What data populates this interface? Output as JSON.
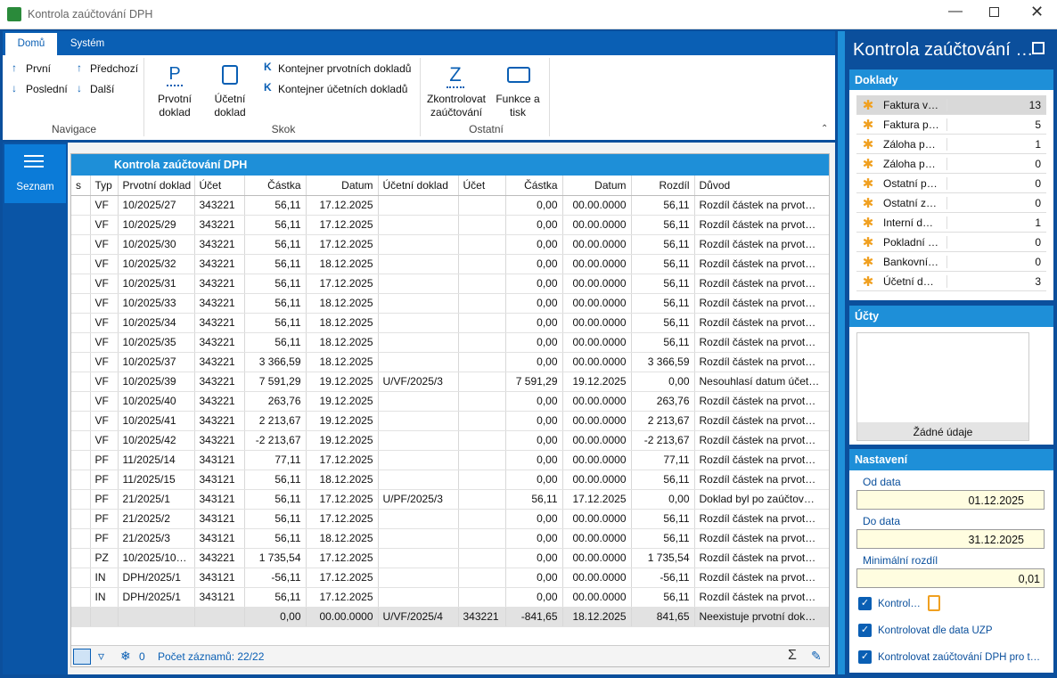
{
  "window": {
    "title": "Kontrola zaúčtování DPH"
  },
  "ribbon": {
    "tabs": [
      "Domů",
      "Systém"
    ],
    "groups": [
      {
        "label": "Navigace",
        "items": [
          "První",
          "Předchozí",
          "Poslední",
          "Další"
        ]
      },
      {
        "label": "Skok",
        "items": [
          "Prvotní doklad",
          "Účetní doklad",
          "Kontejner prvotních dokladů",
          "Kontejner účetních dokladů"
        ]
      },
      {
        "label": "Ostatní",
        "items": [
          "Zkontrolovat zaúčtování",
          "Funkce a tisk"
        ]
      }
    ]
  },
  "sidebar": {
    "label": "Seznam"
  },
  "grid": {
    "title": "Kontrola zaúčtování DPH",
    "columns": [
      "s",
      "Typ",
      "Prvotní doklad",
      "Účet",
      "Částka",
      "Datum",
      "Účetní doklad",
      "Účet",
      "Částka",
      "Datum",
      "Rozdíl",
      "Důvod"
    ],
    "rows": [
      [
        null,
        "VF",
        "10/2025/27",
        "343221",
        "56,11",
        "17.12.2025",
        null,
        null,
        "0,00",
        "00.00.0000",
        "56,11",
        "Rozdíl částek na prvot…"
      ],
      [
        null,
        "VF",
        "10/2025/29",
        "343221",
        "56,11",
        "17.12.2025",
        null,
        null,
        "0,00",
        "00.00.0000",
        "56,11",
        "Rozdíl částek na prvot…"
      ],
      [
        null,
        "VF",
        "10/2025/30",
        "343221",
        "56,11",
        "17.12.2025",
        null,
        null,
        "0,00",
        "00.00.0000",
        "56,11",
        "Rozdíl částek na prvot…"
      ],
      [
        null,
        "VF",
        "10/2025/32",
        "343221",
        "56,11",
        "18.12.2025",
        null,
        null,
        "0,00",
        "00.00.0000",
        "56,11",
        "Rozdíl částek na prvot…"
      ],
      [
        null,
        "VF",
        "10/2025/31",
        "343221",
        "56,11",
        "17.12.2025",
        null,
        null,
        "0,00",
        "00.00.0000",
        "56,11",
        "Rozdíl částek na prvot…"
      ],
      [
        null,
        "VF",
        "10/2025/33",
        "343221",
        "56,11",
        "18.12.2025",
        null,
        null,
        "0,00",
        "00.00.0000",
        "56,11",
        "Rozdíl částek na prvot…"
      ],
      [
        null,
        "VF",
        "10/2025/34",
        "343221",
        "56,11",
        "18.12.2025",
        null,
        null,
        "0,00",
        "00.00.0000",
        "56,11",
        "Rozdíl částek na prvot…"
      ],
      [
        null,
        "VF",
        "10/2025/35",
        "343221",
        "56,11",
        "18.12.2025",
        null,
        null,
        "0,00",
        "00.00.0000",
        "56,11",
        "Rozdíl částek na prvot…"
      ],
      [
        null,
        "VF",
        "10/2025/37",
        "343221",
        "3 366,59",
        "18.12.2025",
        null,
        null,
        "0,00",
        "00.00.0000",
        "3 366,59",
        "Rozdíl částek na prvot…"
      ],
      [
        null,
        "VF",
        "10/2025/39",
        "343221",
        "7 591,29",
        "19.12.2025",
        "U/VF/2025/3",
        null,
        "7 591,29",
        "19.12.2025",
        "0,00",
        "Nesouhlasí datum účet…"
      ],
      [
        null,
        "VF",
        "10/2025/40",
        "343221",
        "263,76",
        "19.12.2025",
        null,
        null,
        "0,00",
        "00.00.0000",
        "263,76",
        "Rozdíl částek na prvot…"
      ],
      [
        null,
        "VF",
        "10/2025/41",
        "343221",
        "2 213,67",
        "19.12.2025",
        null,
        null,
        "0,00",
        "00.00.0000",
        "2 213,67",
        "Rozdíl částek na prvot…"
      ],
      [
        null,
        "VF",
        "10/2025/42",
        "343221",
        "-2 213,67",
        "19.12.2025",
        null,
        null,
        "0,00",
        "00.00.0000",
        "-2 213,67",
        "Rozdíl částek na prvot…"
      ],
      [
        null,
        "PF",
        "11/2025/14",
        "343121",
        "77,11",
        "17.12.2025",
        null,
        null,
        "0,00",
        "00.00.0000",
        "77,11",
        "Rozdíl částek na prvot…"
      ],
      [
        null,
        "PF",
        "11/2025/15",
        "343121",
        "56,11",
        "18.12.2025",
        null,
        null,
        "0,00",
        "00.00.0000",
        "56,11",
        "Rozdíl částek na prvot…"
      ],
      [
        null,
        "PF",
        "21/2025/1",
        "343121",
        "56,11",
        "17.12.2025",
        "U/PF/2025/3",
        null,
        "56,11",
        "17.12.2025",
        "0,00",
        "Doklad byl po zaúčtov…"
      ],
      [
        null,
        "PF",
        "21/2025/2",
        "343121",
        "56,11",
        "17.12.2025",
        null,
        null,
        "0,00",
        "00.00.0000",
        "56,11",
        "Rozdíl částek na prvot…"
      ],
      [
        null,
        "PF",
        "21/2025/3",
        "343121",
        "56,11",
        "18.12.2025",
        null,
        null,
        "0,00",
        "00.00.0000",
        "56,11",
        "Rozdíl částek na prvot…"
      ],
      [
        null,
        "PZ",
        "10/2025/10…",
        "343221",
        "1 735,54",
        "17.12.2025",
        null,
        null,
        "0,00",
        "00.00.0000",
        "1 735,54",
        "Rozdíl částek na prvot…"
      ],
      [
        null,
        "IN",
        "DPH/2025/1",
        "343121",
        "-56,11",
        "17.12.2025",
        null,
        null,
        "0,00",
        "00.00.0000",
        "-56,11",
        "Rozdíl částek na prvot…"
      ],
      [
        null,
        "IN",
        "DPH/2025/1",
        "343121",
        "56,11",
        "17.12.2025",
        null,
        null,
        "0,00",
        "00.00.0000",
        "56,11",
        "Rozdíl částek na prvot…"
      ],
      [
        null,
        null,
        null,
        null,
        "0,00",
        "00.00.0000",
        "U/VF/2025/4",
        "343221",
        "-841,65",
        "18.12.2025",
        "841,65",
        "Neexistuje prvotní dok…"
      ]
    ],
    "filter_count": "0",
    "record_count": "Počet záznamů: 22/22"
  },
  "panel": {
    "title": "Kontrola zaúčtování …",
    "doklady": {
      "title": "Doklady",
      "rows": [
        [
          "Faktura v…",
          "13"
        ],
        [
          "Faktura p…",
          "5"
        ],
        [
          "Záloha p…",
          "1"
        ],
        [
          "Záloha p…",
          "0"
        ],
        [
          "Ostatní p…",
          "0"
        ],
        [
          "Ostatní z…",
          "0"
        ],
        [
          "Interní d…",
          "1"
        ],
        [
          "Pokladní …",
          "0"
        ],
        [
          "Bankovní…",
          "0"
        ],
        [
          "Účetní d…",
          "3"
        ]
      ]
    },
    "ucty": {
      "title": "Účty",
      "empty": "Žádné údaje"
    },
    "nastaveni": {
      "title": "Nastavení",
      "fields": [
        {
          "label": "Od data",
          "value": "01.12.2025"
        },
        {
          "label": "Do data",
          "value": "31.12.2025"
        },
        {
          "label": "Minimální rozdíl",
          "value": "0,01"
        }
      ],
      "checks": [
        "Kontrol…",
        "Kontrolovat dle data UZP",
        "Kontrolovat zaúčtování DPH pro t…"
      ]
    }
  }
}
